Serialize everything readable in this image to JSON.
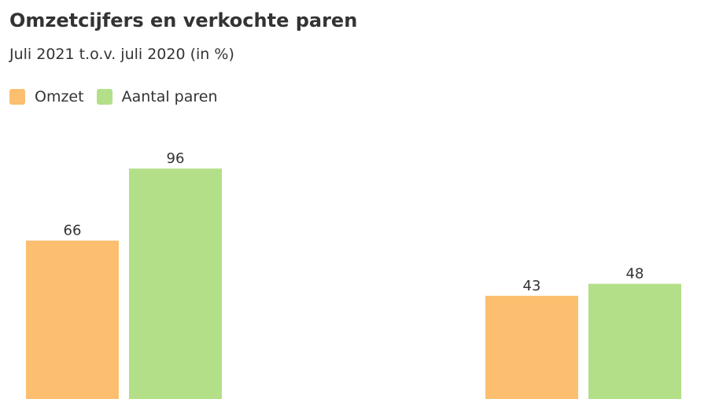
{
  "chart_data": {
    "type": "bar",
    "title": "Omzetcijfers en verkochte paren",
    "subtitle": "Juli 2021 t.o.v. juli 2020 (in %)",
    "categories": [
      "",
      ""
    ],
    "series": [
      {
        "name": "Omzet",
        "color": "#fbbf6f",
        "values": [
          66,
          43
        ]
      },
      {
        "name": "Aantal paren",
        "color": "#b3df88",
        "values": [
          96,
          48
        ]
      }
    ],
    "ylim": [
      0,
      100
    ],
    "grid": false,
    "legend": "top-left"
  }
}
